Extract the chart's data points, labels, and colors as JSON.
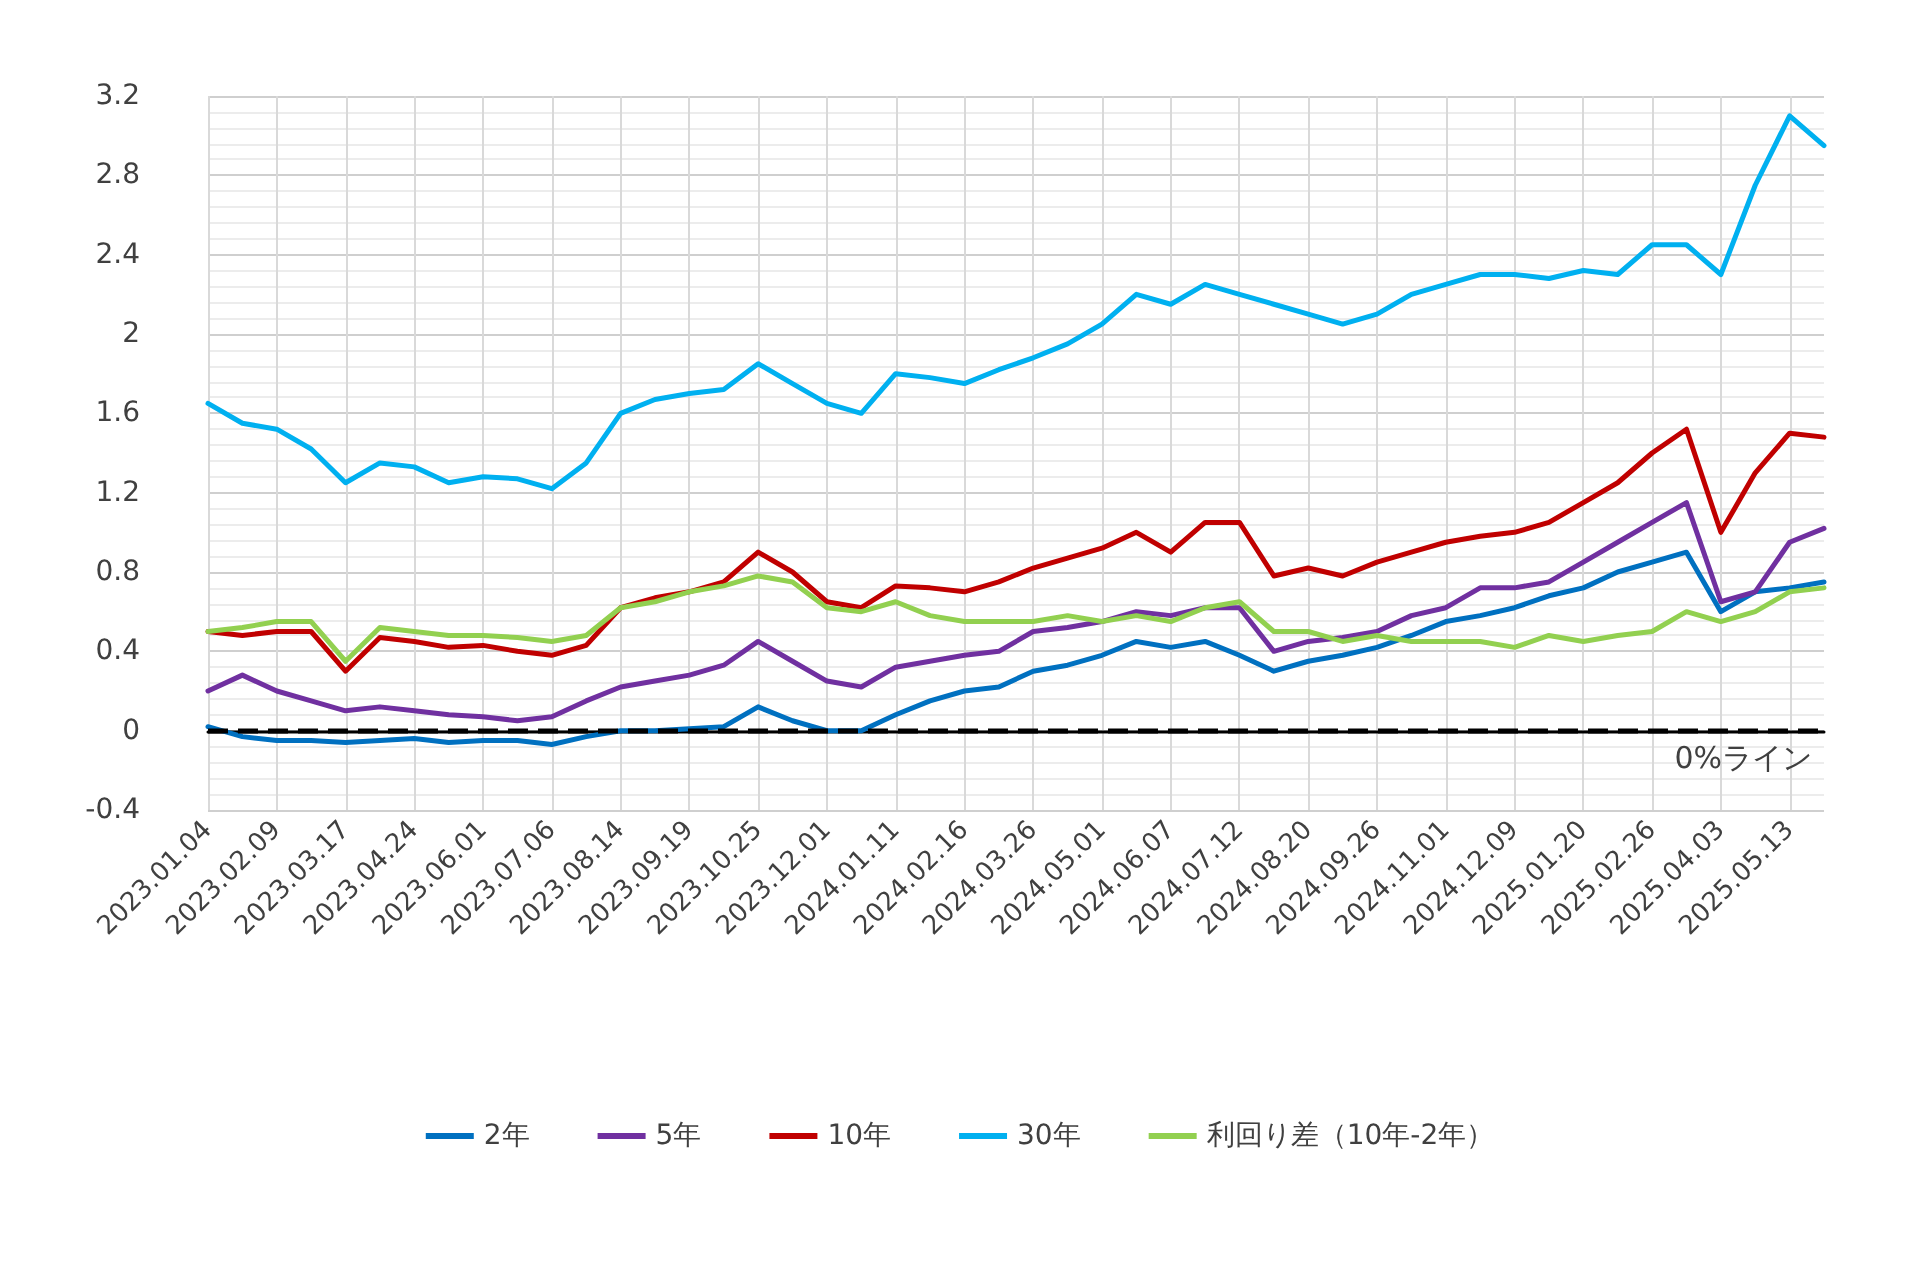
{
  "chart_data": {
    "type": "line",
    "categories": [
      "2023.01.04",
      null,
      "2023.02.09",
      null,
      "2023.03.17",
      null,
      "2023.04.24",
      null,
      "2023.06.01",
      null,
      "2023.07.06",
      null,
      "2023.08.14",
      null,
      "2023.09.19",
      null,
      "2023.10.25",
      null,
      "2023.12.01",
      null,
      "2024.01.11",
      null,
      "2024.02.16",
      null,
      "2024.03.26",
      null,
      "2024.05.01",
      null,
      "2024.06.07",
      null,
      "2024.07.12",
      null,
      "2024.08.20",
      null,
      "2024.09.26",
      null,
      "2024.11.01",
      null,
      "2024.12.09",
      null,
      "2025.01.20",
      null,
      "2025.02.26",
      null,
      "2025.04.03",
      null,
      "2025.05.13",
      null
    ],
    "series": [
      {
        "name": "2年",
        "color": "#0070c0",
        "values": [
          0.02,
          -0.03,
          -0.05,
          -0.05,
          -0.06,
          -0.05,
          -0.04,
          -0.06,
          -0.05,
          -0.05,
          -0.07,
          -0.03,
          0.0,
          0.0,
          0.01,
          0.02,
          0.12,
          0.05,
          0.0,
          0.0,
          0.08,
          0.15,
          0.2,
          0.22,
          0.3,
          0.33,
          0.38,
          0.45,
          0.42,
          0.45,
          0.38,
          0.3,
          0.35,
          0.38,
          0.42,
          0.48,
          0.55,
          0.58,
          0.62,
          0.68,
          0.72,
          0.8,
          0.85,
          0.9,
          0.6,
          0.7,
          0.72,
          0.75
        ]
      },
      {
        "name": "5年",
        "color": "#7030a0",
        "values": [
          0.2,
          0.28,
          0.2,
          0.15,
          0.1,
          0.12,
          0.1,
          0.08,
          0.07,
          0.05,
          0.07,
          0.15,
          0.22,
          0.25,
          0.28,
          0.33,
          0.45,
          0.35,
          0.25,
          0.22,
          0.32,
          0.35,
          0.38,
          0.4,
          0.5,
          0.52,
          0.55,
          0.6,
          0.58,
          0.62,
          0.62,
          0.4,
          0.45,
          0.47,
          0.5,
          0.58,
          0.62,
          0.72,
          0.72,
          0.75,
          0.85,
          0.95,
          1.05,
          1.15,
          0.65,
          0.7,
          0.95,
          1.02
        ]
      },
      {
        "name": "10年",
        "color": "#c00000",
        "values": [
          0.5,
          0.48,
          0.5,
          0.5,
          0.3,
          0.47,
          0.45,
          0.42,
          0.43,
          0.4,
          0.38,
          0.43,
          0.62,
          0.67,
          0.7,
          0.75,
          0.9,
          0.8,
          0.65,
          0.62,
          0.73,
          0.72,
          0.7,
          0.75,
          0.82,
          0.87,
          0.92,
          1.0,
          0.9,
          1.05,
          1.05,
          0.78,
          0.82,
          0.78,
          0.85,
          0.9,
          0.95,
          0.98,
          1.0,
          1.05,
          1.15,
          1.25,
          1.4,
          1.52,
          1.0,
          1.3,
          1.5,
          1.48
        ]
      },
      {
        "name": "30年",
        "color": "#00b0f0",
        "values": [
          1.65,
          1.55,
          1.52,
          1.42,
          1.25,
          1.35,
          1.33,
          1.25,
          1.28,
          1.27,
          1.22,
          1.35,
          1.6,
          1.67,
          1.7,
          1.72,
          1.85,
          1.75,
          1.65,
          1.6,
          1.8,
          1.78,
          1.75,
          1.82,
          1.88,
          1.95,
          2.05,
          2.2,
          2.15,
          2.25,
          2.2,
          2.15,
          2.1,
          2.05,
          2.1,
          2.2,
          2.25,
          2.3,
          2.3,
          2.28,
          2.32,
          2.3,
          2.45,
          2.45,
          2.3,
          2.75,
          3.1,
          2.95
        ]
      },
      {
        "name": "利回り差（10年-2年）",
        "color": "#92d050",
        "values": [
          0.5,
          0.52,
          0.55,
          0.55,
          0.35,
          0.52,
          0.5,
          0.48,
          0.48,
          0.47,
          0.45,
          0.48,
          0.62,
          0.65,
          0.7,
          0.73,
          0.78,
          0.75,
          0.62,
          0.6,
          0.65,
          0.58,
          0.55,
          0.55,
          0.55,
          0.58,
          0.55,
          0.58,
          0.55,
          0.62,
          0.65,
          0.5,
          0.5,
          0.45,
          0.48,
          0.45,
          0.45,
          0.45,
          0.42,
          0.48,
          0.45,
          0.48,
          0.5,
          0.6,
          0.55,
          0.6,
          0.7,
          0.72
        ]
      }
    ],
    "ylim": [
      -0.4,
      3.2
    ],
    "yticks": [
      -0.4,
      0,
      0.4,
      0.8,
      1.2,
      1.6,
      2,
      2.4,
      2.8,
      3.2
    ],
    "ref_lines": [
      {
        "axis": "y",
        "value": 0,
        "label": "0%ライン",
        "color": "#000000",
        "line_style": "dashed"
      }
    ],
    "grid": true,
    "legend": "bottom",
    "marker": "none",
    "line_style": "solid"
  }
}
